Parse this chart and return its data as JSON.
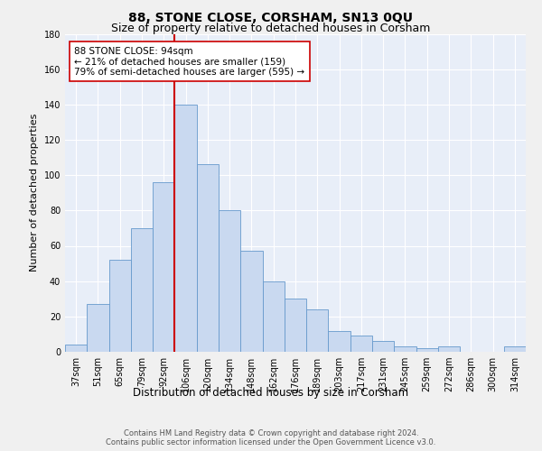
{
  "title": "88, STONE CLOSE, CORSHAM, SN13 0QU",
  "subtitle": "Size of property relative to detached houses in Corsham",
  "xlabel": "Distribution of detached houses by size in Corsham",
  "ylabel": "Number of detached properties",
  "bar_color": "#c9d9f0",
  "bar_edge_color": "#6699cc",
  "categories": [
    "37sqm",
    "51sqm",
    "65sqm",
    "79sqm",
    "92sqm",
    "106sqm",
    "120sqm",
    "134sqm",
    "148sqm",
    "162sqm",
    "176sqm",
    "189sqm",
    "203sqm",
    "217sqm",
    "231sqm",
    "245sqm",
    "259sqm",
    "272sqm",
    "286sqm",
    "300sqm",
    "314sqm"
  ],
  "values": [
    4,
    27,
    52,
    70,
    96,
    140,
    106,
    80,
    57,
    40,
    30,
    24,
    12,
    9,
    6,
    3,
    2,
    3,
    0,
    0,
    3
  ],
  "red_line_x": 4.5,
  "red_line_color": "#cc0000",
  "annotation_text": "88 STONE CLOSE: 94sqm\n← 21% of detached houses are smaller (159)\n79% of semi-detached houses are larger (595) →",
  "annotation_box_color": "#ffffff",
  "annotation_box_edge": "#cc0000",
  "footnote": "Contains HM Land Registry data © Crown copyright and database right 2024.\nContains public sector information licensed under the Open Government Licence v3.0.",
  "ylim": [
    0,
    180
  ],
  "yticks": [
    0,
    20,
    40,
    60,
    80,
    100,
    120,
    140,
    160,
    180
  ],
  "background_color": "#e8eef8",
  "grid_color": "#ffffff",
  "fig_facecolor": "#f0f0f0",
  "title_fontsize": 10,
  "subtitle_fontsize": 9,
  "tick_fontsize": 7,
  "ylabel_fontsize": 8,
  "xlabel_fontsize": 8.5,
  "annotation_fontsize": 7.5,
  "footnote_fontsize": 6
}
